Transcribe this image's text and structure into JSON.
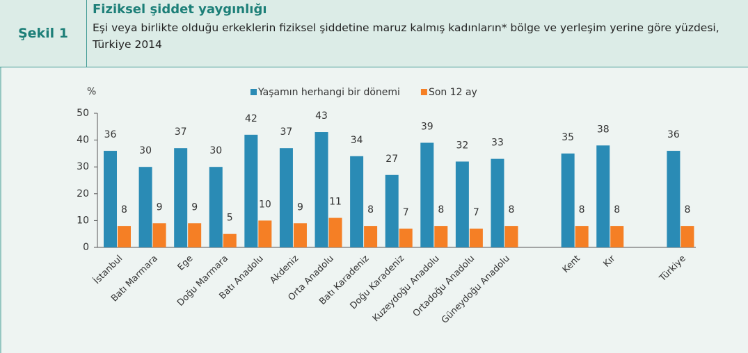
{
  "header": {
    "label": "Şekil 1",
    "title": "Fiziksel şiddet yaygınlığı",
    "subtitle": "Eşi veya birlikte olduğu erkeklerin fiziksel şiddetine maruz kalmış kadınların* bölge ve yerleşim yerine göre yüzdesi, Türkiye 2014"
  },
  "chart_data": {
    "type": "bar",
    "ylabel": "%",
    "categories": [
      "İstanbul",
      "Batı Marmara",
      "Ege",
      "Doğu Marmara",
      "Batı Anadolu",
      "Akdeniz",
      "Orta Anadolu",
      "Batı Karadeniz",
      "Doğu Karadeniz",
      "Kuzeydoğu Anadolu",
      "Ortadoğu Anadolu",
      "Güneydoğu Anadolu",
      null,
      "Kent",
      "Kır",
      null,
      "Türkiye"
    ],
    "series": [
      {
        "name": "Yaşamın herhangi bir dönemi",
        "color": "#2a8bb5",
        "values": [
          36,
          30,
          37,
          30,
          42,
          37,
          43,
          34,
          27,
          39,
          32,
          33,
          null,
          35,
          38,
          null,
          36
        ]
      },
      {
        "name": "Son 12 ay",
        "color": "#f57f25",
        "values": [
          8,
          9,
          9,
          5,
          10,
          9,
          11,
          8,
          7,
          8,
          7,
          8,
          null,
          8,
          8,
          null,
          8
        ]
      }
    ],
    "ylim": [
      0,
      50
    ],
    "yticks": [
      0,
      10,
      20,
      30,
      40,
      50
    ],
    "legend": "top"
  }
}
